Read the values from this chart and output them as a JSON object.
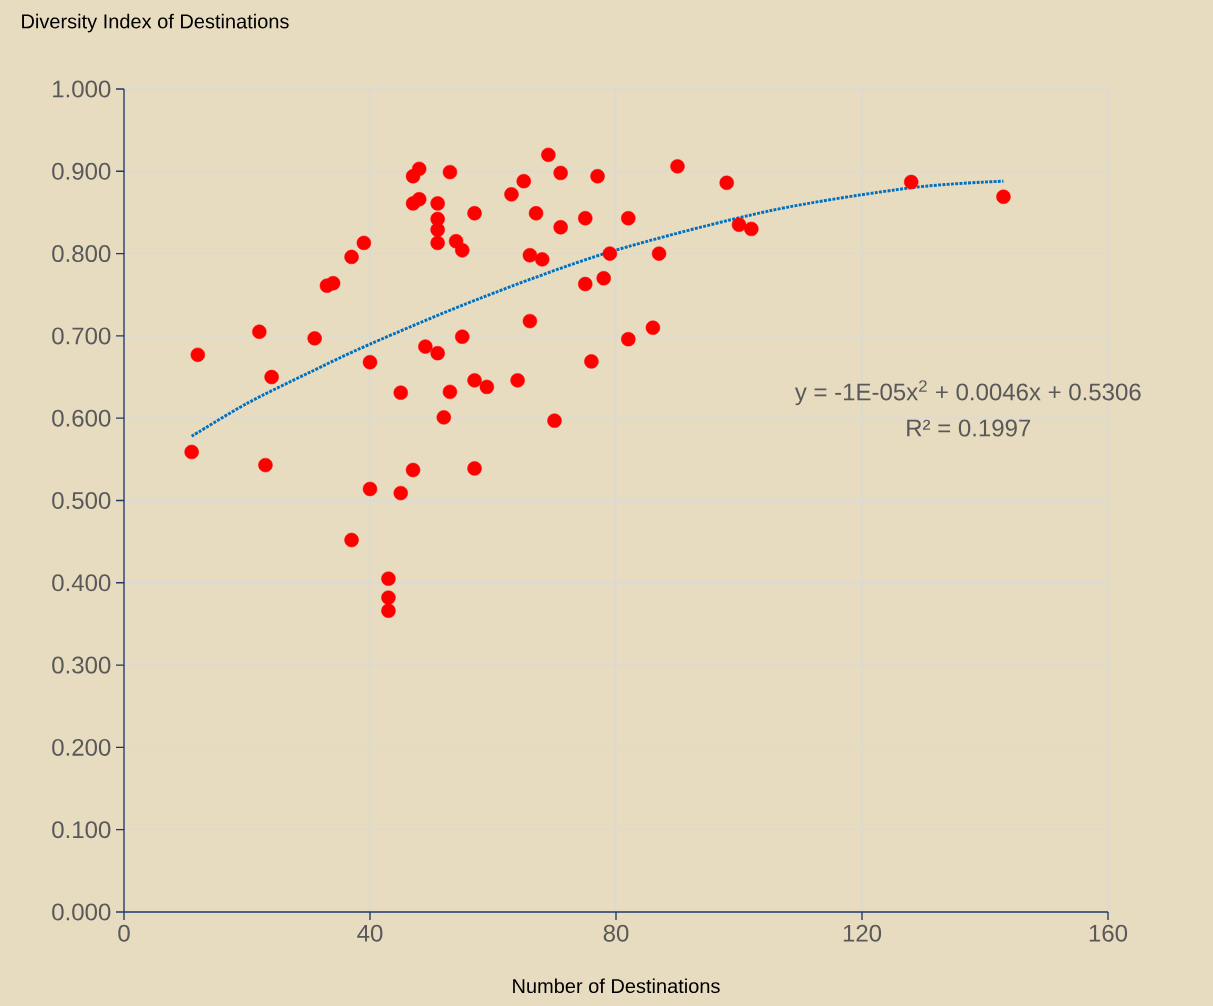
{
  "chart_data": {
    "type": "scatter",
    "xlabel": "Number of Destinations",
    "ylabel": "Diversity Index of Destinations",
    "annotations": [
      "y = -1E-05x$^{2}$ + 0.0046x + 0.5306",
      "R² = 0.1997"
    ],
    "xlim": [
      0,
      160
    ],
    "xticks": [
      0,
      40,
      80,
      120,
      160
    ],
    "ylim": [
      0,
      1
    ],
    "yticks": [
      {
        "value": 0,
        "label": "0.000"
      },
      {
        "value": 0.1,
        "label": "0.100"
      },
      {
        "value": 0.2,
        "label": "0.200"
      },
      {
        "value": 0.3,
        "label": "0.300"
      },
      {
        "value": 0.4,
        "label": "0.400"
      },
      {
        "value": 0.5,
        "label": "0.500"
      },
      {
        "value": 0.6,
        "label": "0.600"
      },
      {
        "value": 0.7,
        "label": "0.700"
      },
      {
        "value": 0.8,
        "label": "0.800"
      },
      {
        "value": 0.9,
        "label": "0.900"
      },
      {
        "value": 1,
        "label": "1.000"
      }
    ],
    "grid": true,
    "series": [
      {
        "color": "#ff0000",
        "marker": "circle",
        "x": [
          11,
          12,
          22,
          23,
          24,
          31,
          33,
          34,
          37,
          37,
          39,
          40,
          40,
          43,
          43,
          43,
          45,
          45,
          47,
          48,
          47,
          48,
          47,
          49,
          51,
          51,
          51,
          51,
          51,
          52,
          53,
          53,
          54,
          55,
          55,
          57,
          57,
          57,
          59,
          63,
          64,
          65,
          66,
          66,
          67,
          68,
          69,
          70,
          71,
          71,
          75,
          75,
          76,
          77,
          78,
          79,
          82,
          82,
          86,
          87,
          90,
          98,
          100,
          102,
          128,
          143
        ],
        "values": [
          0.559,
          0.677,
          0.705,
          0.543,
          0.65,
          0.697,
          0.761,
          0.764,
          0.796,
          0.452,
          0.813,
          0.668,
          0.514,
          0.405,
          0.382,
          0.366,
          0.631,
          0.509,
          0.894,
          0.903,
          0.861,
          0.866,
          0.537,
          0.687,
          0.861,
          0.842,
          0.829,
          0.813,
          0.679,
          0.601,
          0.899,
          0.632,
          0.815,
          0.804,
          0.699,
          0.849,
          0.646,
          0.539,
          0.638,
          0.872,
          0.646,
          0.888,
          0.798,
          0.718,
          0.849,
          0.793,
          0.92,
          0.597,
          0.898,
          0.832,
          0.843,
          0.763,
          0.669,
          0.894,
          0.77,
          0.8,
          0.843,
          0.696,
          0.71,
          0.8,
          0.906,
          0.886,
          0.835,
          0.83,
          0.887,
          0.869
        ]
      },
      {
        "type": "line",
        "color": "#0070c0",
        "marker": "none",
        "line_style": "dotted",
        "x": [
          11,
          20,
          30,
          40,
          58,
          79,
          105,
          128,
          143
        ],
        "values": [
          0.578,
          0.618,
          0.655,
          0.69,
          0.746,
          0.802,
          0.852,
          0.88,
          0.888
        ]
      }
    ]
  }
}
